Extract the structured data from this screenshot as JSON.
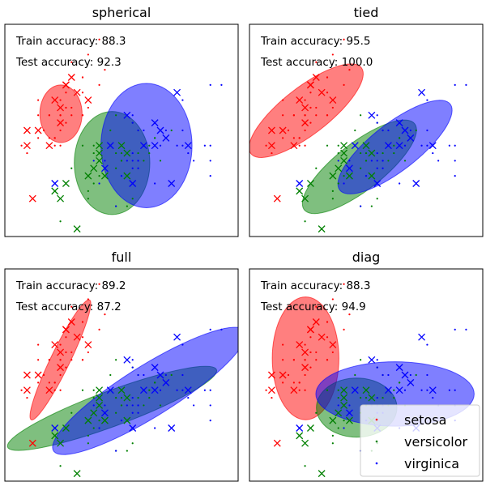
{
  "chart_data": [
    {
      "type": "scatter",
      "title": "spherical",
      "train_accuracy_label": "Train accuracy: 88.3",
      "test_accuracy_label": "Test accuracy: 92.3",
      "xlim": [
        4.0,
        8.2
      ],
      "ylim": [
        1.8,
        4.6
      ],
      "ellipses": [
        {
          "series": "setosa",
          "center": [
            5.01,
            3.42
          ],
          "width": 0.76,
          "height": 0.76,
          "angle": 0
        },
        {
          "series": "versicolor",
          "center": [
            5.93,
            2.77
          ],
          "width": 1.36,
          "height": 1.36,
          "angle": 0
        },
        {
          "series": "virginica",
          "center": [
            6.55,
            3.0
          ],
          "width": 1.64,
          "height": 1.64,
          "angle": 0
        }
      ]
    },
    {
      "type": "scatter",
      "title": "tied",
      "train_accuracy_label": "Train accuracy: 95.5",
      "test_accuracy_label": "Test accuracy: 100.0",
      "xlim": [
        4.0,
        8.2
      ],
      "ylim": [
        1.8,
        4.6
      ],
      "ellipses": [
        {
          "series": "setosa",
          "center": [
            5.02,
            3.46
          ],
          "width": 2.3,
          "height": 0.68,
          "angle": 28
        },
        {
          "series": "versicolor",
          "center": [
            5.98,
            2.72
          ],
          "width": 2.3,
          "height": 0.68,
          "angle": 28
        },
        {
          "series": "virginica",
          "center": [
            6.62,
            2.98
          ],
          "width": 2.3,
          "height": 0.68,
          "angle": 28
        }
      ]
    },
    {
      "type": "scatter",
      "title": "full",
      "train_accuracy_label": "Train accuracy: 89.2",
      "test_accuracy_label": "Test accuracy: 87.2",
      "xlim": [
        4.0,
        8.2
      ],
      "ylim": [
        1.8,
        4.6
      ],
      "ellipses": [
        {
          "series": "setosa",
          "center": [
            5.0,
            3.4
          ],
          "width": 1.9,
          "height": 0.32,
          "angle": 56
        },
        {
          "series": "versicolor",
          "center": [
            5.93,
            2.76
          ],
          "width": 3.9,
          "height": 0.48,
          "angle": 15
        },
        {
          "series": "virginica",
          "center": [
            6.6,
            2.99
          ],
          "width": 3.8,
          "height": 0.72,
          "angle": 24
        }
      ]
    },
    {
      "type": "scatter",
      "title": "diag",
      "train_accuracy_label": "Train accuracy: 88.3",
      "test_accuracy_label": "Test accuracy: 94.9",
      "xlim": [
        4.0,
        8.2
      ],
      "ylim": [
        1.8,
        4.6
      ],
      "ellipses": [
        {
          "series": "setosa",
          "center": [
            5.01,
            3.42
          ],
          "width": 1.2,
          "height": 1.62,
          "angle": 0
        },
        {
          "series": "versicolor",
          "center": [
            5.93,
            2.77
          ],
          "width": 1.45,
          "height": 0.78,
          "angle": 0
        },
        {
          "series": "virginica",
          "center": [
            6.62,
            2.95
          ],
          "width": 2.85,
          "height": 0.85,
          "angle": 0
        }
      ]
    }
  ],
  "series": [
    {
      "name": "setosa",
      "color": "#ff0000"
    },
    {
      "name": "versicolor",
      "color": "#008000"
    },
    {
      "name": "virginica",
      "color": "#0000ff"
    }
  ],
  "train_points": {
    "setosa": [
      [
        5.1,
        3.5
      ],
      [
        4.9,
        3.0
      ],
      [
        4.7,
        3.2
      ],
      [
        4.6,
        3.1
      ],
      [
        5.0,
        3.6
      ],
      [
        5.4,
        3.9
      ],
      [
        4.6,
        3.4
      ],
      [
        5.0,
        3.4
      ],
      [
        4.4,
        2.9
      ],
      [
        4.9,
        3.1
      ],
      [
        5.4,
        3.7
      ],
      [
        4.8,
        3.4
      ],
      [
        4.8,
        3.0
      ],
      [
        4.3,
        3.0
      ],
      [
        5.8,
        4.0
      ],
      [
        5.7,
        4.4
      ],
      [
        5.4,
        3.9
      ],
      [
        5.1,
        3.5
      ],
      [
        5.7,
        3.8
      ],
      [
        5.1,
        3.8
      ],
      [
        5.4,
        3.4
      ],
      [
        5.1,
        3.7
      ],
      [
        4.6,
        3.6
      ],
      [
        5.1,
        3.3
      ],
      [
        4.8,
        3.4
      ],
      [
        5.0,
        3.0
      ],
      [
        5.0,
        3.4
      ],
      [
        5.2,
        3.5
      ],
      [
        5.2,
        3.4
      ],
      [
        4.7,
        3.2
      ],
      [
        4.8,
        3.1
      ],
      [
        5.4,
        3.4
      ],
      [
        5.2,
        4.1
      ],
      [
        5.5,
        4.2
      ],
      [
        4.9,
        3.1
      ],
      [
        5.0,
        3.2
      ],
      [
        5.5,
        3.5
      ]
    ],
    "versicolor": [
      [
        7.0,
        3.2
      ],
      [
        6.4,
        3.2
      ],
      [
        6.9,
        3.1
      ],
      [
        5.5,
        2.3
      ],
      [
        6.5,
        2.8
      ],
      [
        5.7,
        2.8
      ],
      [
        6.3,
        3.3
      ],
      [
        4.9,
        2.4
      ],
      [
        6.6,
        2.9
      ],
      [
        5.2,
        2.7
      ],
      [
        5.0,
        2.0
      ],
      [
        5.9,
        3.0
      ],
      [
        6.0,
        2.2
      ],
      [
        6.1,
        2.9
      ],
      [
        5.6,
        2.9
      ],
      [
        6.7,
        3.1
      ],
      [
        5.6,
        3.0
      ],
      [
        5.8,
        2.7
      ],
      [
        6.2,
        2.2
      ],
      [
        5.6,
        2.5
      ],
      [
        5.9,
        3.2
      ],
      [
        6.1,
        2.8
      ],
      [
        6.3,
        2.5
      ],
      [
        6.1,
        2.8
      ],
      [
        6.4,
        2.9
      ],
      [
        6.6,
        3.0
      ],
      [
        6.8,
        2.8
      ],
      [
        6.7,
        3.0
      ],
      [
        6.0,
        2.9
      ],
      [
        5.7,
        2.6
      ],
      [
        5.5,
        2.4
      ],
      [
        5.8,
        2.7
      ],
      [
        6.0,
        2.7
      ],
      [
        5.4,
        3.0
      ],
      [
        6.0,
        3.4
      ],
      [
        6.7,
        3.1
      ],
      [
        6.3,
        2.3
      ]
    ],
    "virginica": [
      [
        6.3,
        3.3
      ],
      [
        5.8,
        2.7
      ],
      [
        7.1,
        3.0
      ],
      [
        6.3,
        2.9
      ],
      [
        6.5,
        3.0
      ],
      [
        7.6,
        3.0
      ],
      [
        4.9,
        2.5
      ],
      [
        7.3,
        2.9
      ],
      [
        6.7,
        2.5
      ],
      [
        7.2,
        3.6
      ],
      [
        6.5,
        3.2
      ],
      [
        6.4,
        2.7
      ],
      [
        6.8,
        3.0
      ],
      [
        5.7,
        2.5
      ],
      [
        5.8,
        2.8
      ],
      [
        6.4,
        3.2
      ],
      [
        6.5,
        3.0
      ],
      [
        7.7,
        3.8
      ],
      [
        7.7,
        2.6
      ],
      [
        6.0,
        2.2
      ],
      [
        6.9,
        3.2
      ],
      [
        5.6,
        2.8
      ],
      [
        7.7,
        2.8
      ],
      [
        6.3,
        2.7
      ],
      [
        6.7,
        3.3
      ],
      [
        7.2,
        3.2
      ],
      [
        6.2,
        2.8
      ],
      [
        6.1,
        3.0
      ],
      [
        6.4,
        2.8
      ],
      [
        7.2,
        3.0
      ],
      [
        7.4,
        2.8
      ],
      [
        7.9,
        3.8
      ],
      [
        6.4,
        2.8
      ],
      [
        6.3,
        2.8
      ],
      [
        6.1,
        2.6
      ],
      [
        7.7,
        3.0
      ],
      [
        6.3,
        3.4
      ]
    ]
  },
  "test_points": {
    "setosa": [
      [
        5.2,
        3.9
      ],
      [
        4.5,
        2.3
      ],
      [
        4.4,
        3.2
      ],
      [
        5.0,
        3.5
      ],
      [
        5.1,
        3.8
      ],
      [
        4.8,
        3.0
      ],
      [
        5.1,
        3.8
      ],
      [
        4.6,
        3.2
      ],
      [
        5.3,
        3.7
      ],
      [
        5.0,
        3.3
      ],
      [
        4.4,
        3.0
      ],
      [
        4.9,
        3.6
      ],
      [
        5.5,
        3.6
      ]
    ],
    "versicolor": [
      [
        5.5,
        2.6
      ],
      [
        6.1,
        3.0
      ],
      [
        5.8,
        2.6
      ],
      [
        5.0,
        2.3
      ],
      [
        5.6,
        2.7
      ],
      [
        5.7,
        3.0
      ],
      [
        5.7,
        2.9
      ],
      [
        6.2,
        2.9
      ],
      [
        5.1,
        2.5
      ],
      [
        5.7,
        2.8
      ],
      [
        4.9,
        2.4
      ],
      [
        6.2,
        2.6
      ],
      [
        5.3,
        1.9
      ]
    ],
    "virginica": [
      [
        6.9,
        3.1
      ],
      [
        5.8,
        2.7
      ],
      [
        6.8,
        3.2
      ],
      [
        6.7,
        3.3
      ],
      [
        6.7,
        3.0
      ],
      [
        6.3,
        2.5
      ],
      [
        6.5,
        3.0
      ],
      [
        6.2,
        3.4
      ],
      [
        5.9,
        3.0
      ],
      [
        7.3,
        3.0
      ],
      [
        7.0,
        2.5
      ],
      [
        4.9,
        2.5
      ],
      [
        7.1,
        3.7
      ]
    ]
  },
  "legend": {
    "placement": "lower-right",
    "entries": [
      "setosa",
      "versicolor",
      "virginica"
    ]
  }
}
